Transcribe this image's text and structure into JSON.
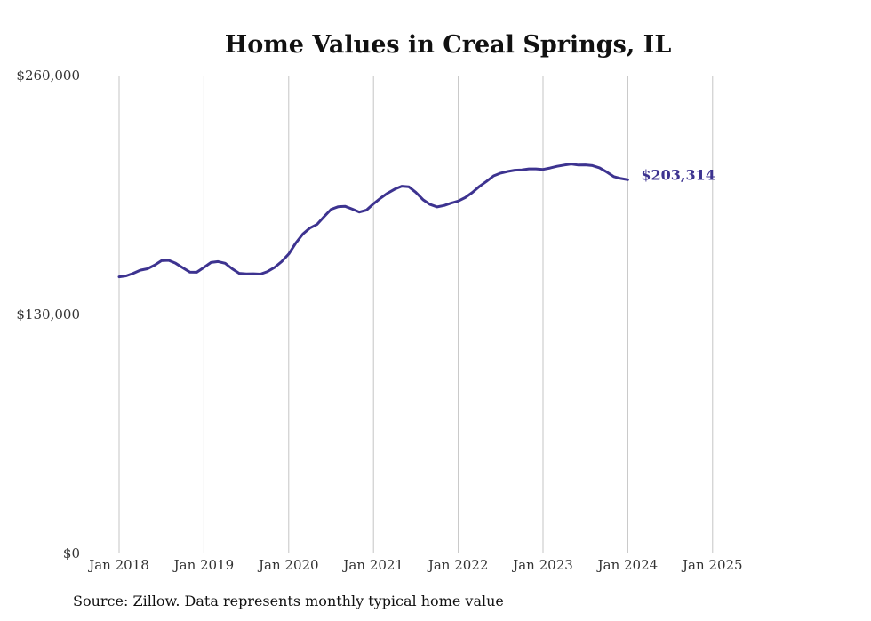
{
  "chart_data": {
    "type": "line",
    "title": "Home Values in Creal Springs, IL",
    "xlabel": "",
    "ylabel": "",
    "x_start": "2018-01",
    "x_ticks": [
      "Jan 2018",
      "Jan 2019",
      "Jan 2020",
      "Jan 2021",
      "Jan 2022",
      "Jan 2023",
      "Jan 2024",
      "Jan 2025"
    ],
    "y_ticks": [
      {
        "value": 0,
        "label": "$0"
      },
      {
        "value": 130000,
        "label": "$130,000"
      },
      {
        "value": 260000,
        "label": "$260,000"
      }
    ],
    "ylim": [
      0,
      260000
    ],
    "grid": "vertical",
    "series": [
      {
        "name": "Typical home value",
        "color": "#3d3390",
        "end_label": "$203,314",
        "values": [
          150500,
          151000,
          152400,
          154100,
          154900,
          156800,
          159300,
          159500,
          157900,
          155400,
          153100,
          153000,
          155600,
          158300,
          158800,
          157900,
          154900,
          152400,
          152100,
          152200,
          152000,
          153400,
          155600,
          158800,
          162900,
          168900,
          173800,
          177000,
          179000,
          183200,
          187200,
          188600,
          188800,
          187300,
          185700,
          186800,
          190200,
          193300,
          196000,
          198200,
          199800,
          199500,
          196400,
          192500,
          189900,
          188500,
          189300,
          190600,
          191700,
          193600,
          196400,
          199700,
          202400,
          205400,
          206900,
          207800,
          208500,
          208700,
          209200,
          209200,
          208900,
          209700,
          210600,
          211300,
          211800,
          211300,
          211400,
          211000,
          209800,
          207500,
          205000,
          204000,
          203314
        ]
      }
    ]
  },
  "footer": {
    "source": "Source: Zillow. Data represents monthly typical home value"
  }
}
